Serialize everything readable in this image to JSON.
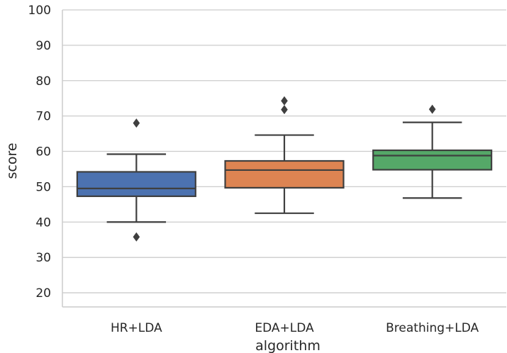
{
  "chart_data": {
    "type": "box",
    "xlabel": "algorithm",
    "ylabel": "score",
    "ylim": [
      16,
      100
    ],
    "yticks": [
      20,
      30,
      40,
      50,
      60,
      70,
      80,
      90,
      100
    ],
    "grid": true,
    "categories": [
      "HR+LDA",
      "EDA+LDA",
      "Breathing+LDA"
    ],
    "boxes": [
      {
        "category": "HR+LDA",
        "whisker_low": 40,
        "q1": 47.3,
        "median": 49.5,
        "q3": 54.2,
        "whisker_high": 59.2,
        "outliers": [
          68,
          35.8
        ],
        "color": "#4c72b0"
      },
      {
        "category": "EDA+LDA",
        "whisker_low": 42.5,
        "q1": 49.7,
        "median": 54.7,
        "q3": 57.3,
        "whisker_high": 64.6,
        "outliers": [
          74.3,
          71.8
        ],
        "color": "#dd8452"
      },
      {
        "category": "Breathing+LDA",
        "whisker_low": 46.8,
        "q1": 54.8,
        "median": 58.8,
        "q3": 60.3,
        "whisker_high": 68.2,
        "outliers": [
          71.9
        ],
        "color": "#55a868"
      }
    ]
  }
}
